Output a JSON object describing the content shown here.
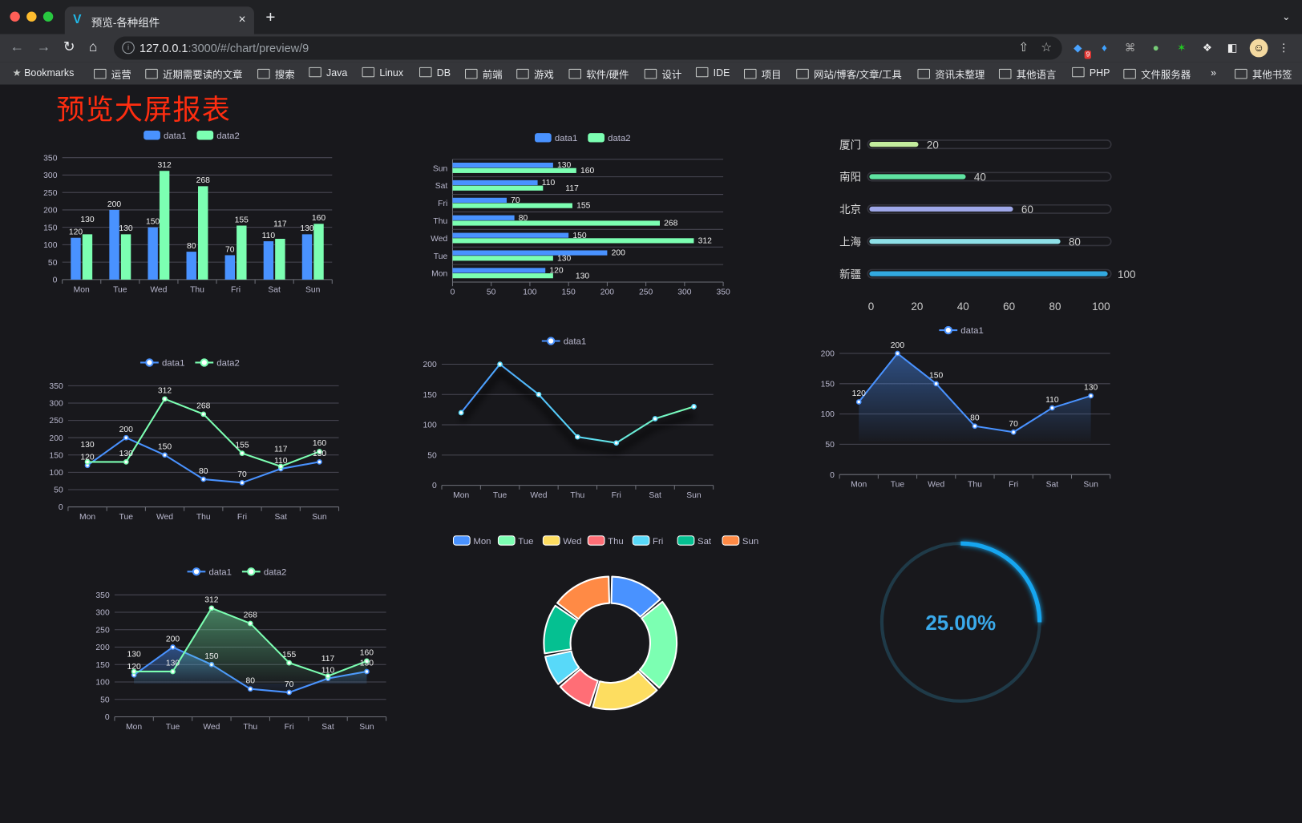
{
  "browser": {
    "tab_title": "预览-各种组件",
    "tab_close": "×",
    "new_tab": "+",
    "url_host": "127.0.0.1",
    "url_rest": ":3000/#/chart/preview/9",
    "extension_badge": "9",
    "bookmarks": [
      "Bookmarks",
      "运营",
      "近期需要读的文章",
      "搜索",
      "Java",
      "Linux",
      "DB",
      "前端",
      "游戏",
      "软件/硬件",
      "设计",
      "IDE",
      "项目",
      "网站/博客/文章/工具",
      "资讯未整理",
      "其他语言",
      "PHP",
      "文件服务器"
    ],
    "bookmarks_more": "»",
    "other_bookmarks": "其他书签"
  },
  "page": {
    "title": "预览大屏报表",
    "colors": {
      "background": "#18181c",
      "title": "#ff2d10",
      "data1": "#4992ff",
      "data2": "#7cffb2"
    }
  },
  "chart_data": [
    {
      "type": "bar",
      "categories": [
        "Mon",
        "Tue",
        "Wed",
        "Thu",
        "Fri",
        "Sat",
        "Sun"
      ],
      "series": [
        {
          "name": "data1",
          "values": [
            120,
            200,
            150,
            80,
            70,
            110,
            130
          ]
        },
        {
          "name": "data2",
          "values": [
            130,
            130,
            312,
            268,
            155,
            117,
            160
          ]
        }
      ],
      "ylim": [
        0,
        350
      ],
      "yticks": [
        0,
        50,
        100,
        150,
        200,
        250,
        300,
        350
      ],
      "legend": "top",
      "grid": true
    },
    {
      "type": "bar",
      "orientation": "horizontal",
      "categories": [
        "Mon",
        "Tue",
        "Wed",
        "Thu",
        "Fri",
        "Sat",
        "Sun"
      ],
      "series": [
        {
          "name": "data1",
          "values": [
            120,
            200,
            150,
            80,
            70,
            110,
            130
          ]
        },
        {
          "name": "data2",
          "values": [
            130,
            130,
            312,
            268,
            155,
            117,
            160
          ]
        }
      ],
      "xlim": [
        0,
        350
      ],
      "xticks": [
        0,
        50,
        100,
        150,
        200,
        250,
        300,
        350
      ],
      "legend": "top",
      "grid": true
    },
    {
      "type": "bar",
      "orientation": "horizontal",
      "style": "progress",
      "categories": [
        "厦门",
        "南阳",
        "北京",
        "上海",
        "新疆"
      ],
      "values": [
        20,
        40,
        60,
        80,
        100
      ],
      "colors": [
        "#c4ed9e",
        "#5fe3a1",
        "#9ea7e8",
        "#8ee0e8",
        "#32a9e0"
      ],
      "xlim": [
        0,
        100
      ],
      "xticks": [
        0,
        20,
        40,
        60,
        80,
        100
      ]
    },
    {
      "type": "line",
      "categories": [
        "Mon",
        "Tue",
        "Wed",
        "Thu",
        "Fri",
        "Sat",
        "Sun"
      ],
      "series": [
        {
          "name": "data1",
          "values": [
            120,
            200,
            150,
            80,
            70,
            110,
            130
          ]
        },
        {
          "name": "data2",
          "values": [
            130,
            130,
            312,
            268,
            155,
            117,
            160
          ]
        }
      ],
      "ylim": [
        0,
        350
      ],
      "yticks": [
        0,
        50,
        100,
        150,
        200,
        250,
        300,
        350
      ],
      "legend": "top",
      "grid": true
    },
    {
      "type": "line",
      "categories": [
        "Mon",
        "Tue",
        "Wed",
        "Thu",
        "Fri",
        "Sat",
        "Sun"
      ],
      "series": [
        {
          "name": "data1",
          "values": [
            120,
            200,
            150,
            80,
            70,
            110,
            130
          ]
        }
      ],
      "ylim": [
        0,
        200
      ],
      "yticks": [
        0,
        50,
        100,
        150,
        200
      ],
      "legend": "top",
      "grid": true,
      "labels": false
    },
    {
      "type": "area",
      "categories": [
        "Mon",
        "Tue",
        "Wed",
        "Thu",
        "Fri",
        "Sat",
        "Sun"
      ],
      "series": [
        {
          "name": "data1",
          "values": [
            120,
            200,
            150,
            80,
            70,
            110,
            130
          ]
        }
      ],
      "ylim": [
        0,
        200
      ],
      "yticks": [
        0,
        50,
        100,
        150,
        200
      ],
      "legend": "top",
      "grid": true
    },
    {
      "type": "pie",
      "style": "donut",
      "categories": [
        "Mon",
        "Tue",
        "Wed",
        "Thu",
        "Fri",
        "Sat",
        "Sun"
      ],
      "values": [
        120,
        200,
        150,
        80,
        70,
        110,
        130
      ],
      "colors": [
        "#4992ff",
        "#7cffb2",
        "#fddd60",
        "#ff6e76",
        "#58d9f9",
        "#05c091",
        "#ff8a45"
      ],
      "legend": "top"
    },
    {
      "type": "area",
      "categories": [
        "Mon",
        "Tue",
        "Wed",
        "Thu",
        "Fri",
        "Sat",
        "Sun"
      ],
      "series": [
        {
          "name": "data1",
          "values": [
            120,
            200,
            150,
            80,
            70,
            110,
            130
          ]
        },
        {
          "name": "data2",
          "values": [
            130,
            130,
            312,
            268,
            155,
            117,
            160
          ]
        }
      ],
      "ylim": [
        0,
        350
      ],
      "yticks": [
        0,
        50,
        100,
        150,
        200,
        250,
        300,
        350
      ],
      "legend": "top",
      "grid": true
    },
    {
      "type": "pie",
      "style": "gauge",
      "value": 0.25,
      "label": "25.00%",
      "color": "#16a6f0"
    }
  ]
}
